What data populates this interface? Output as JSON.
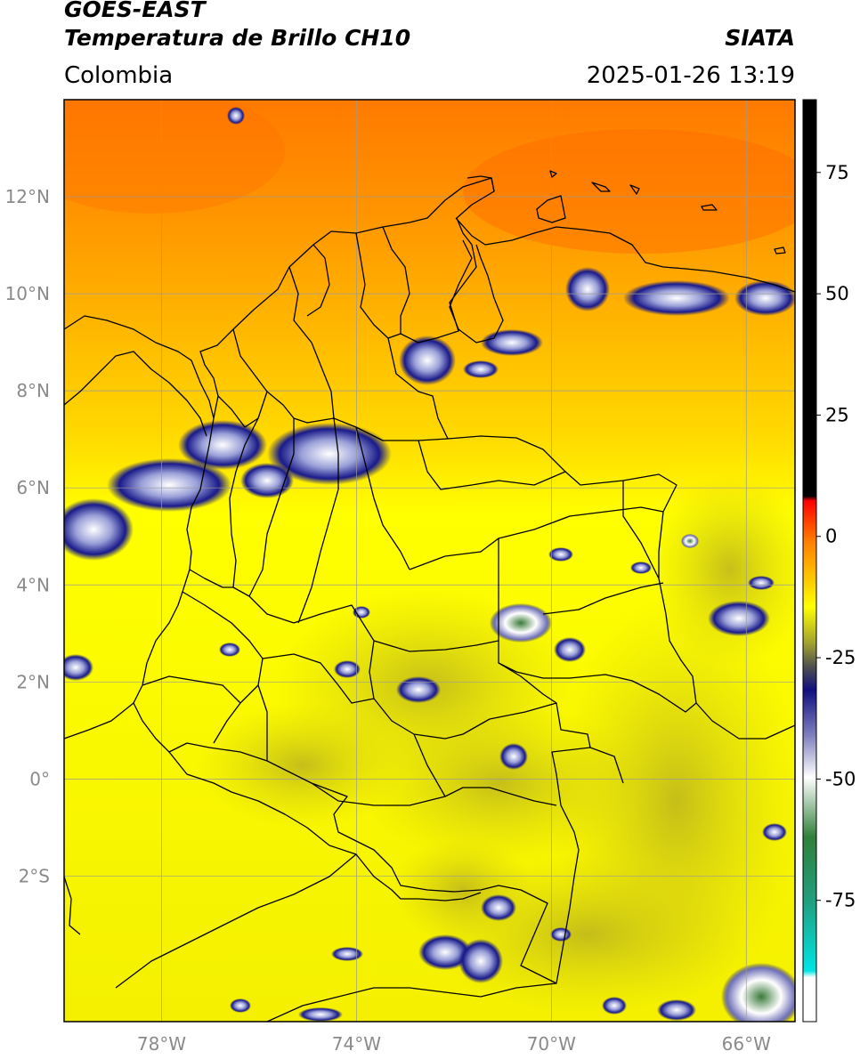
{
  "header": {
    "title_line1": "GOES-EAST",
    "title_line2": "Temperatura de Brillo CH10",
    "brand": "SIATA",
    "region": "Colombia",
    "timestamp": "2025-01-26 13:19"
  },
  "map": {
    "lon_range": [
      -80,
      -65
    ],
    "lat_range": [
      -5,
      14
    ],
    "lon_ticks": [
      {
        "value": -78,
        "label": "78°W"
      },
      {
        "value": -74,
        "label": "74°W"
      },
      {
        "value": -70,
        "label": "70°W"
      },
      {
        "value": -66,
        "label": "66°W"
      }
    ],
    "lat_ticks": [
      {
        "value": 12,
        "label": "12°N"
      },
      {
        "value": 10,
        "label": "10°N"
      },
      {
        "value": 8,
        "label": "8°N"
      },
      {
        "value": 6,
        "label": "6°N"
      },
      {
        "value": 4,
        "label": "4°N"
      },
      {
        "value": 2,
        "label": "2°N"
      },
      {
        "value": 0,
        "label": "0°"
      },
      {
        "value": -2,
        "label": "2°S"
      }
    ],
    "grid": true,
    "grid_color": "#9a9a9a"
  },
  "colorbar": {
    "range": [
      -100,
      90
    ],
    "ticks": [
      {
        "value": 75,
        "label": "75"
      },
      {
        "value": 50,
        "label": "50"
      },
      {
        "value": 25,
        "label": "25"
      },
      {
        "value": 0,
        "label": "0"
      },
      {
        "value": -25,
        "label": "-25"
      },
      {
        "value": -50,
        "label": "-50"
      },
      {
        "value": -75,
        "label": "-75"
      }
    ],
    "stops": [
      {
        "value": 90,
        "color": "#000000"
      },
      {
        "value": 8,
        "color": "#000000"
      },
      {
        "value": 7.9,
        "color": "#ff0000"
      },
      {
        "value": 0,
        "color": "#ff8000"
      },
      {
        "value": -12,
        "color": "#ffff00"
      },
      {
        "value": -20,
        "color": "#a0a030"
      },
      {
        "value": -25,
        "color": "#505050"
      },
      {
        "value": -29,
        "color": "#101080"
      },
      {
        "value": -40,
        "color": "#8080c0"
      },
      {
        "value": -48,
        "color": "#ffffff"
      },
      {
        "value": -60,
        "color": "#30803a"
      },
      {
        "value": -75,
        "color": "#20a080"
      },
      {
        "value": -90,
        "color": "#00e5e5"
      },
      {
        "value": -91,
        "color": "#ffffff"
      },
      {
        "value": -100,
        "color": "#ffffff"
      }
    ]
  }
}
